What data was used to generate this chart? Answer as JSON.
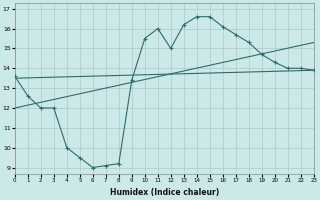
{
  "xlabel": "Humidex (Indice chaleur)",
  "xlim": [
    0,
    23
  ],
  "ylim": [
    8.7,
    17.3
  ],
  "xticks": [
    0,
    1,
    2,
    3,
    4,
    5,
    6,
    7,
    8,
    9,
    10,
    11,
    12,
    13,
    14,
    15,
    16,
    17,
    18,
    19,
    20,
    21,
    22,
    23
  ],
  "yticks": [
    9,
    10,
    11,
    12,
    13,
    14,
    15,
    16,
    17
  ],
  "bg_color": "#cce9e9",
  "grid_color": "#b0c8c8",
  "line_color": "#2e6b6b",
  "line1_x": [
    0,
    1,
    2,
    3,
    4,
    5,
    6,
    7,
    8,
    9,
    10,
    11,
    12,
    13,
    14,
    15,
    16,
    17,
    18,
    19,
    20,
    21,
    22,
    23
  ],
  "line1_y": [
    13.6,
    12.6,
    12.0,
    12.0,
    10.0,
    9.5,
    9.0,
    9.1,
    9.2,
    13.4,
    15.5,
    16.0,
    15.0,
    16.2,
    16.6,
    16.6,
    16.1,
    15.7,
    15.3,
    14.7,
    14.3,
    14.0,
    14.0,
    13.9
  ],
  "line2_x": [
    0,
    23
  ],
  "line2_y": [
    12.0,
    15.3
  ],
  "line3_x": [
    0,
    23
  ],
  "line3_y": [
    13.5,
    13.9
  ]
}
